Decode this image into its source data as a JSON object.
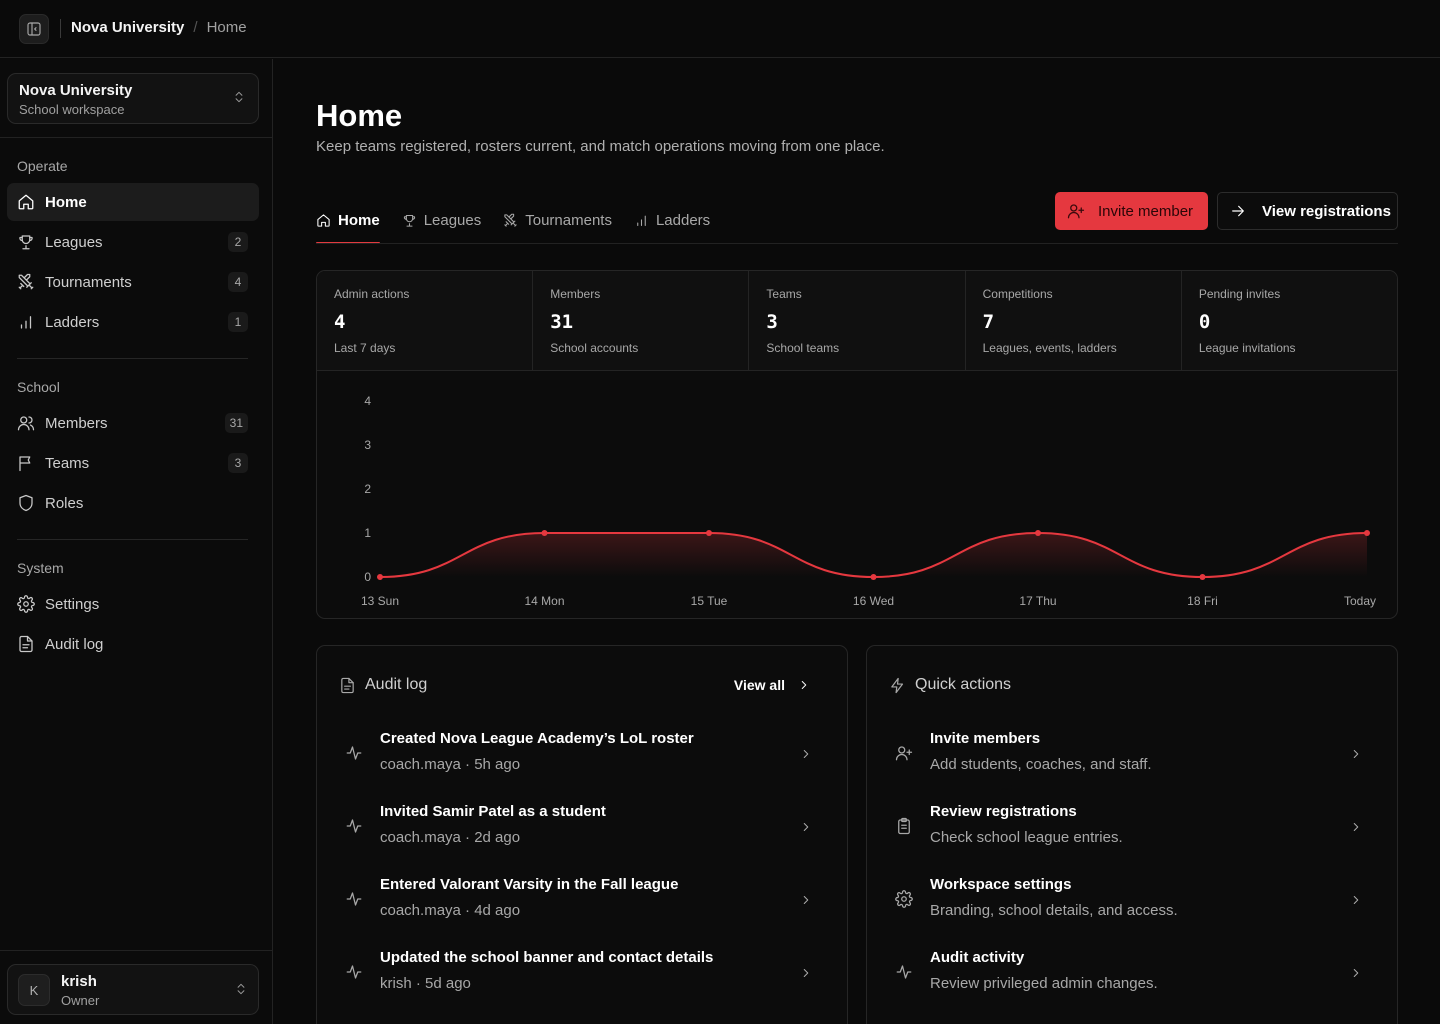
{
  "breadcrumb": {
    "org": "Nova University",
    "separator": "/",
    "current": "Home"
  },
  "workspace": {
    "name": "Nova University",
    "subtitle": "School workspace"
  },
  "sidebar": {
    "sections": {
      "operate": "Operate",
      "school": "School",
      "system": "System"
    },
    "items": [
      {
        "label": "Home",
        "icon": "home-icon",
        "active": true
      },
      {
        "label": "Leagues",
        "icon": "trophy-icon",
        "count": "2"
      },
      {
        "label": "Tournaments",
        "icon": "swords-icon",
        "count": "4"
      },
      {
        "label": "Ladders",
        "icon": "bar-chart-icon",
        "count": "1"
      },
      {
        "label": "Members",
        "icon": "users-icon",
        "count": "31"
      },
      {
        "label": "Teams",
        "icon": "flag-icon",
        "count": "3"
      },
      {
        "label": "Roles",
        "icon": "shield-icon"
      },
      {
        "label": "Settings",
        "icon": "gear-icon"
      },
      {
        "label": "Audit log",
        "icon": "document-icon"
      }
    ]
  },
  "user": {
    "initial": "K",
    "name": "krish",
    "role": "Owner"
  },
  "page": {
    "title": "Home",
    "subtitle": "Keep teams registered, rosters current, and match operations moving from one place."
  },
  "tabs": [
    {
      "label": "Home",
      "icon": "home-icon",
      "active": true
    },
    {
      "label": "Leagues",
      "icon": "trophy-icon"
    },
    {
      "label": "Tournaments",
      "icon": "swords-icon"
    },
    {
      "label": "Ladders",
      "icon": "bar-chart-icon"
    }
  ],
  "actions": {
    "invite": "Invite member",
    "view_registrations": "View registrations"
  },
  "stats": [
    {
      "label": "Admin actions",
      "value": "4",
      "desc": "Last 7 days"
    },
    {
      "label": "Members",
      "value": "31",
      "desc": "School accounts"
    },
    {
      "label": "Teams",
      "value": "3",
      "desc": "School teams"
    },
    {
      "label": "Competitions",
      "value": "7",
      "desc": "Leagues, events, ladders"
    },
    {
      "label": "Pending invites",
      "value": "0",
      "desc": "League invitations"
    }
  ],
  "chart_data": {
    "type": "area",
    "categories": [
      "13 Sun",
      "14 Mon",
      "15 Tue",
      "16 Wed",
      "17 Thu",
      "18 Fri",
      "Today"
    ],
    "values": [
      0,
      1,
      1,
      0,
      1,
      0,
      1
    ],
    "y_ticks": [
      "0",
      "1",
      "2",
      "3",
      "4"
    ],
    "ylim": [
      0,
      4
    ],
    "line_color": "#e5383f",
    "grid": false
  },
  "audit_log": {
    "title": "Audit log",
    "view_all": "View all",
    "items": [
      {
        "title": "Created Nova League Academy’s LoL roster",
        "meta": "coach.maya · 5h ago"
      },
      {
        "title": "Invited Samir Patel as a student",
        "meta": "coach.maya · 2d ago"
      },
      {
        "title": "Entered Valorant Varsity in the Fall league",
        "meta": "coach.maya · 4d ago"
      },
      {
        "title": "Updated the school banner and contact details",
        "meta": "krish · 5d ago"
      }
    ]
  },
  "quick_actions": {
    "title": "Quick actions",
    "items": [
      {
        "title": "Invite members",
        "desc": "Add students, coaches, and staff.",
        "icon": "user-plus-icon"
      },
      {
        "title": "Review registrations",
        "desc": "Check school league entries.",
        "icon": "clipboard-icon"
      },
      {
        "title": "Workspace settings",
        "desc": "Branding, school details, and access.",
        "icon": "gear-icon"
      },
      {
        "title": "Audit activity",
        "desc": "Review privileged admin changes.",
        "icon": "activity-icon"
      }
    ]
  },
  "colors": {
    "accent": "#e5383f",
    "background": "#0a0a0a",
    "surface": "#0c0c0c"
  }
}
